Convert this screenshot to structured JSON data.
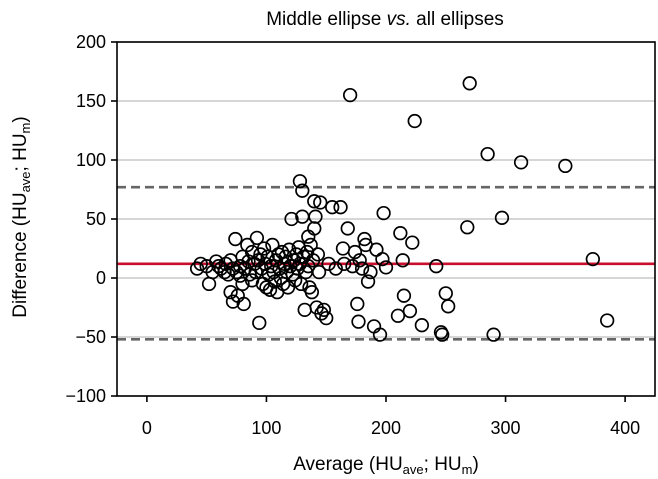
{
  "chart_data": {
    "type": "scatter",
    "title_prefix": "Middle ellipse ",
    "title_italic": "vs.",
    "title_suffix": " all ellipses",
    "xlabel": {
      "pre": "Average (HU",
      "sub1": "ave",
      "mid": "; HU",
      "sub2": "m",
      "post": ")"
    },
    "ylabel": {
      "pre": "Difference (HU",
      "sub1": "ave",
      "mid": "; HU",
      "sub2": "m",
      "post": ")"
    },
    "xlim": [
      -25,
      425
    ],
    "ylim": [
      -100,
      200
    ],
    "xticks": [
      0,
      100,
      200,
      300,
      400
    ],
    "yticks": [
      -100,
      -50,
      0,
      50,
      100,
      150,
      200
    ],
    "ytick_labels": [
      "−100",
      "−50",
      "0",
      "50",
      "100",
      "150",
      "200"
    ],
    "grid": "horizontal",
    "mean_line": {
      "y": 12,
      "color": "#c8102e"
    },
    "limits_of_agreement": {
      "upper": 77,
      "lower": -52,
      "color": "#666666"
    },
    "points": [
      [
        42,
        8
      ],
      [
        45,
        12
      ],
      [
        50,
        10
      ],
      [
        52,
        -5
      ],
      [
        55,
        5
      ],
      [
        58,
        14
      ],
      [
        60,
        10
      ],
      [
        62,
        8
      ],
      [
        65,
        5
      ],
      [
        66,
        12
      ],
      [
        68,
        3
      ],
      [
        70,
        15
      ],
      [
        70,
        -12
      ],
      [
        72,
        8
      ],
      [
        72,
        -20
      ],
      [
        74,
        33
      ],
      [
        75,
        5
      ],
      [
        76,
        -15
      ],
      [
        78,
        10
      ],
      [
        78,
        2
      ],
      [
        80,
        18
      ],
      [
        80,
        -5
      ],
      [
        81,
        -22
      ],
      [
        82,
        8
      ],
      [
        84,
        28
      ],
      [
        85,
        14
      ],
      [
        86,
        3
      ],
      [
        88,
        22
      ],
      [
        88,
        -2
      ],
      [
        90,
        12
      ],
      [
        91,
        5
      ],
      [
        92,
        34
      ],
      [
        93,
        15
      ],
      [
        94,
        -38
      ],
      [
        95,
        20
      ],
      [
        96,
        8
      ],
      [
        97,
        -5
      ],
      [
        98,
        25
      ],
      [
        99,
        12
      ],
      [
        100,
        -8
      ],
      [
        101,
        18
      ],
      [
        102,
        3
      ],
      [
        103,
        -10
      ],
      [
        104,
        10
      ],
      [
        105,
        28
      ],
      [
        106,
        5
      ],
      [
        107,
        -3
      ],
      [
        108,
        15
      ],
      [
        109,
        -12
      ],
      [
        110,
        20
      ],
      [
        111,
        8
      ],
      [
        112,
        0
      ],
      [
        113,
        22
      ],
      [
        114,
        -5
      ],
      [
        115,
        12
      ],
      [
        116,
        18
      ],
      [
        117,
        5
      ],
      [
        118,
        -8
      ],
      [
        119,
        24
      ],
      [
        120,
        10
      ],
      [
        121,
        50
      ],
      [
        122,
        3
      ],
      [
        123,
        15
      ],
      [
        124,
        -2
      ],
      [
        125,
        20
      ],
      [
        126,
        8
      ],
      [
        127,
        26
      ],
      [
        128,
        82
      ],
      [
        128,
        12
      ],
      [
        129,
        -5
      ],
      [
        130,
        74
      ],
      [
        130,
        52
      ],
      [
        131,
        18
      ],
      [
        132,
        -27
      ],
      [
        133,
        5
      ],
      [
        134,
        22
      ],
      [
        135,
        10
      ],
      [
        135,
        35
      ],
      [
        136,
        -8
      ],
      [
        137,
        28
      ],
      [
        138,
        -12
      ],
      [
        139,
        15
      ],
      [
        140,
        65
      ],
      [
        140,
        42
      ],
      [
        141,
        52
      ],
      [
        142,
        -25
      ],
      [
        143,
        20
      ],
      [
        144,
        5
      ],
      [
        145,
        64
      ],
      [
        146,
        -30
      ],
      [
        148,
        -27
      ],
      [
        150,
        -34
      ],
      [
        152,
        12
      ],
      [
        155,
        60
      ],
      [
        158,
        8
      ],
      [
        162,
        60
      ],
      [
        164,
        25
      ],
      [
        165,
        12
      ],
      [
        168,
        42
      ],
      [
        170,
        155
      ],
      [
        172,
        10
      ],
      [
        174,
        22
      ],
      [
        176,
        -22
      ],
      [
        177,
        -37
      ],
      [
        178,
        15
      ],
      [
        180,
        8
      ],
      [
        182,
        33
      ],
      [
        183,
        28
      ],
      [
        185,
        -3
      ],
      [
        187,
        5
      ],
      [
        190,
        -41
      ],
      [
        192,
        24
      ],
      [
        195,
        -48
      ],
      [
        197,
        16
      ],
      [
        198,
        55
      ],
      [
        200,
        9
      ],
      [
        210,
        -32
      ],
      [
        212,
        38
      ],
      [
        214,
        15
      ],
      [
        215,
        -15
      ],
      [
        220,
        -28
      ],
      [
        222,
        30
      ],
      [
        224,
        133
      ],
      [
        230,
        -40
      ],
      [
        242,
        10
      ],
      [
        246,
        -46
      ],
      [
        247,
        -48
      ],
      [
        250,
        -13
      ],
      [
        252,
        -24
      ],
      [
        268,
        43
      ],
      [
        270,
        165
      ],
      [
        285,
        105
      ],
      [
        290,
        -48
      ],
      [
        297,
        51
      ],
      [
        313,
        98
      ],
      [
        350,
        95
      ],
      [
        373,
        16
      ],
      [
        385,
        -36
      ]
    ]
  }
}
